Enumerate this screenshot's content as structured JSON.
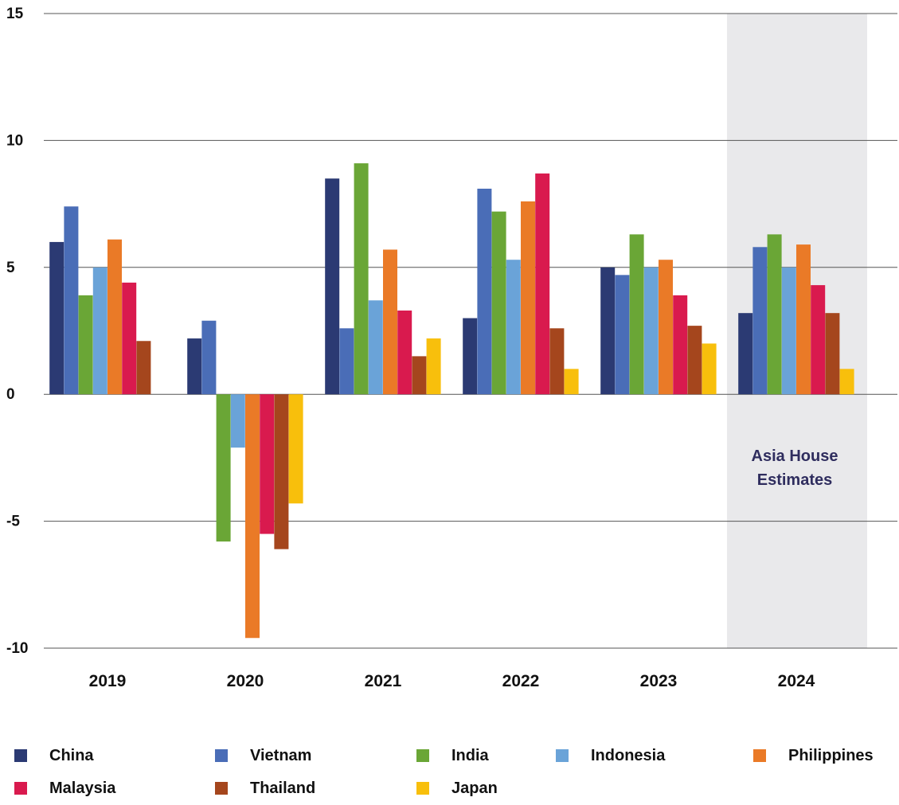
{
  "chart_data": {
    "type": "bar",
    "categories": [
      "2019",
      "2020",
      "2021",
      "2022",
      "2023",
      "2024"
    ],
    "ylim": [
      -10,
      15
    ],
    "yticks": [
      15,
      10,
      5,
      0,
      -5,
      -10
    ],
    "grid": true,
    "legend_position": "bottom",
    "series": [
      {
        "name": "China",
        "color": "#2b3a73",
        "values": [
          6.0,
          2.2,
          8.5,
          3.0,
          5.0,
          3.2
        ]
      },
      {
        "name": "Vietnam",
        "color": "#4a6db7",
        "values": [
          7.4,
          2.9,
          2.6,
          8.1,
          4.7,
          5.8
        ]
      },
      {
        "name": "India",
        "color": "#6aa636",
        "values": [
          3.9,
          -5.8,
          9.1,
          7.2,
          6.3,
          6.3
        ]
      },
      {
        "name": "Indonesia",
        "color": "#6aa3d8",
        "values": [
          5.0,
          -2.1,
          3.7,
          5.3,
          5.0,
          5.0
        ]
      },
      {
        "name": "Philippines",
        "color": "#ea7a27",
        "values": [
          6.1,
          -9.6,
          5.7,
          7.6,
          5.3,
          5.9
        ]
      },
      {
        "name": "Malaysia",
        "color": "#d91a4e",
        "values": [
          4.4,
          -5.5,
          3.3,
          8.7,
          3.9,
          4.3
        ]
      },
      {
        "name": "Thailand",
        "color": "#a5461d",
        "values": [
          2.1,
          -6.1,
          1.5,
          2.6,
          2.7,
          3.2
        ]
      },
      {
        "name": "Japan",
        "color": "#f8bf0c",
        "values": [
          null,
          -4.3,
          2.2,
          1.0,
          2.0,
          1.0
        ]
      }
    ],
    "shaded_region": {
      "category": "2024",
      "label_lines": [
        "Asia House",
        "Estimates"
      ],
      "fill": "#e9e9eb",
      "label_color": "#2f2d5e"
    }
  }
}
